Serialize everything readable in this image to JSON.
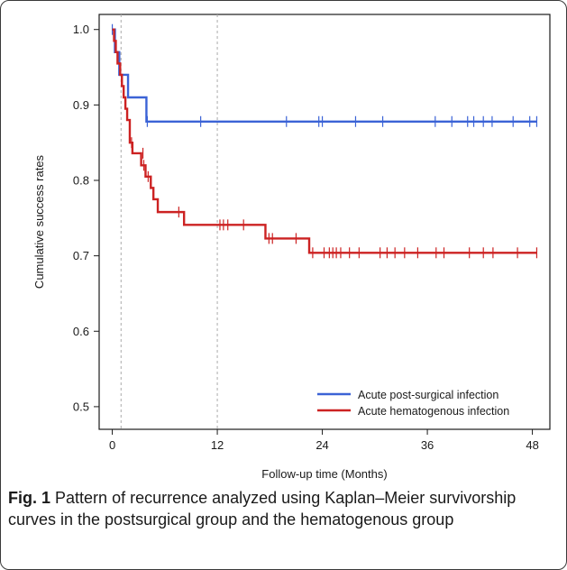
{
  "chart_data": {
    "type": "line",
    "step": true,
    "xlabel": "Follow-up time (Months)",
    "ylabel": "Cumulative success rates",
    "xlim": [
      -1.5,
      50
    ],
    "ylim": [
      0.47,
      1.02
    ],
    "xticks": [
      0,
      12,
      24,
      36,
      48
    ],
    "yticks": [
      "0.5",
      "0.6",
      "0.7",
      "0.8",
      "0.9",
      "1.0"
    ],
    "reference_lines_x": [
      1,
      12
    ],
    "legend_position": "bottom-right",
    "series": [
      {
        "name": "Acute post-surgical infection",
        "color": "#3b63d6",
        "steps": [
          [
            0,
            1.0
          ],
          [
            0.3,
            0.97
          ],
          [
            0.8,
            0.94
          ],
          [
            1.8,
            0.91
          ],
          [
            3.9,
            0.878
          ],
          [
            48.5,
            0.878
          ]
        ],
        "censored": [
          [
            0,
            1.0
          ],
          [
            4.0,
            0.878
          ],
          [
            10.1,
            0.878
          ],
          [
            19.9,
            0.878
          ],
          [
            23.6,
            0.878
          ],
          [
            24.0,
            0.878
          ],
          [
            27.8,
            0.878
          ],
          [
            30.9,
            0.878
          ],
          [
            36.9,
            0.878
          ],
          [
            38.8,
            0.878
          ],
          [
            40.6,
            0.878
          ],
          [
            41.3,
            0.878
          ],
          [
            42.4,
            0.878
          ],
          [
            43.4,
            0.878
          ],
          [
            45.8,
            0.878
          ],
          [
            47.7,
            0.878
          ],
          [
            48.5,
            0.878
          ]
        ]
      },
      {
        "name": "Acute hematogenous infection",
        "color": "#cc2222",
        "steps": [
          [
            0,
            1.0
          ],
          [
            0.2,
            0.985
          ],
          [
            0.4,
            0.97
          ],
          [
            0.6,
            0.955
          ],
          [
            0.9,
            0.94
          ],
          [
            1.1,
            0.925
          ],
          [
            1.3,
            0.91
          ],
          [
            1.5,
            0.895
          ],
          [
            1.7,
            0.88
          ],
          [
            2.0,
            0.85
          ],
          [
            2.3,
            0.836
          ],
          [
            3.3,
            0.82
          ],
          [
            3.8,
            0.805
          ],
          [
            4.4,
            0.79
          ],
          [
            4.7,
            0.775
          ],
          [
            5.2,
            0.758
          ],
          [
            8.2,
            0.741
          ],
          [
            17.5,
            0.723
          ],
          [
            22.5,
            0.704
          ],
          [
            48.5,
            0.704
          ]
        ],
        "censored": [
          [
            2.2,
            0.85
          ],
          [
            3.5,
            0.836
          ],
          [
            3.6,
            0.82
          ],
          [
            4.1,
            0.805
          ],
          [
            7.6,
            0.758
          ],
          [
            12.3,
            0.741
          ],
          [
            12.7,
            0.741
          ],
          [
            13.2,
            0.741
          ],
          [
            15.0,
            0.741
          ],
          [
            17.9,
            0.723
          ],
          [
            18.3,
            0.723
          ],
          [
            21.0,
            0.723
          ],
          [
            22.9,
            0.704
          ],
          [
            24.2,
            0.704
          ],
          [
            24.8,
            0.704
          ],
          [
            25.2,
            0.704
          ],
          [
            25.6,
            0.704
          ],
          [
            26.1,
            0.704
          ],
          [
            27.1,
            0.704
          ],
          [
            28.2,
            0.704
          ],
          [
            30.6,
            0.704
          ],
          [
            31.4,
            0.704
          ],
          [
            32.3,
            0.704
          ],
          [
            33.4,
            0.704
          ],
          [
            34.9,
            0.704
          ],
          [
            37.0,
            0.704
          ],
          [
            37.9,
            0.704
          ],
          [
            40.8,
            0.704
          ],
          [
            42.4,
            0.704
          ],
          [
            43.5,
            0.704
          ],
          [
            46.3,
            0.704
          ],
          [
            48.5,
            0.704
          ]
        ]
      }
    ]
  },
  "caption": {
    "label": "Fig. 1",
    "text": "Pattern of recurrence analyzed using Kaplan–Meier survivorship curves in the postsurgical group and the hematogenous group"
  }
}
